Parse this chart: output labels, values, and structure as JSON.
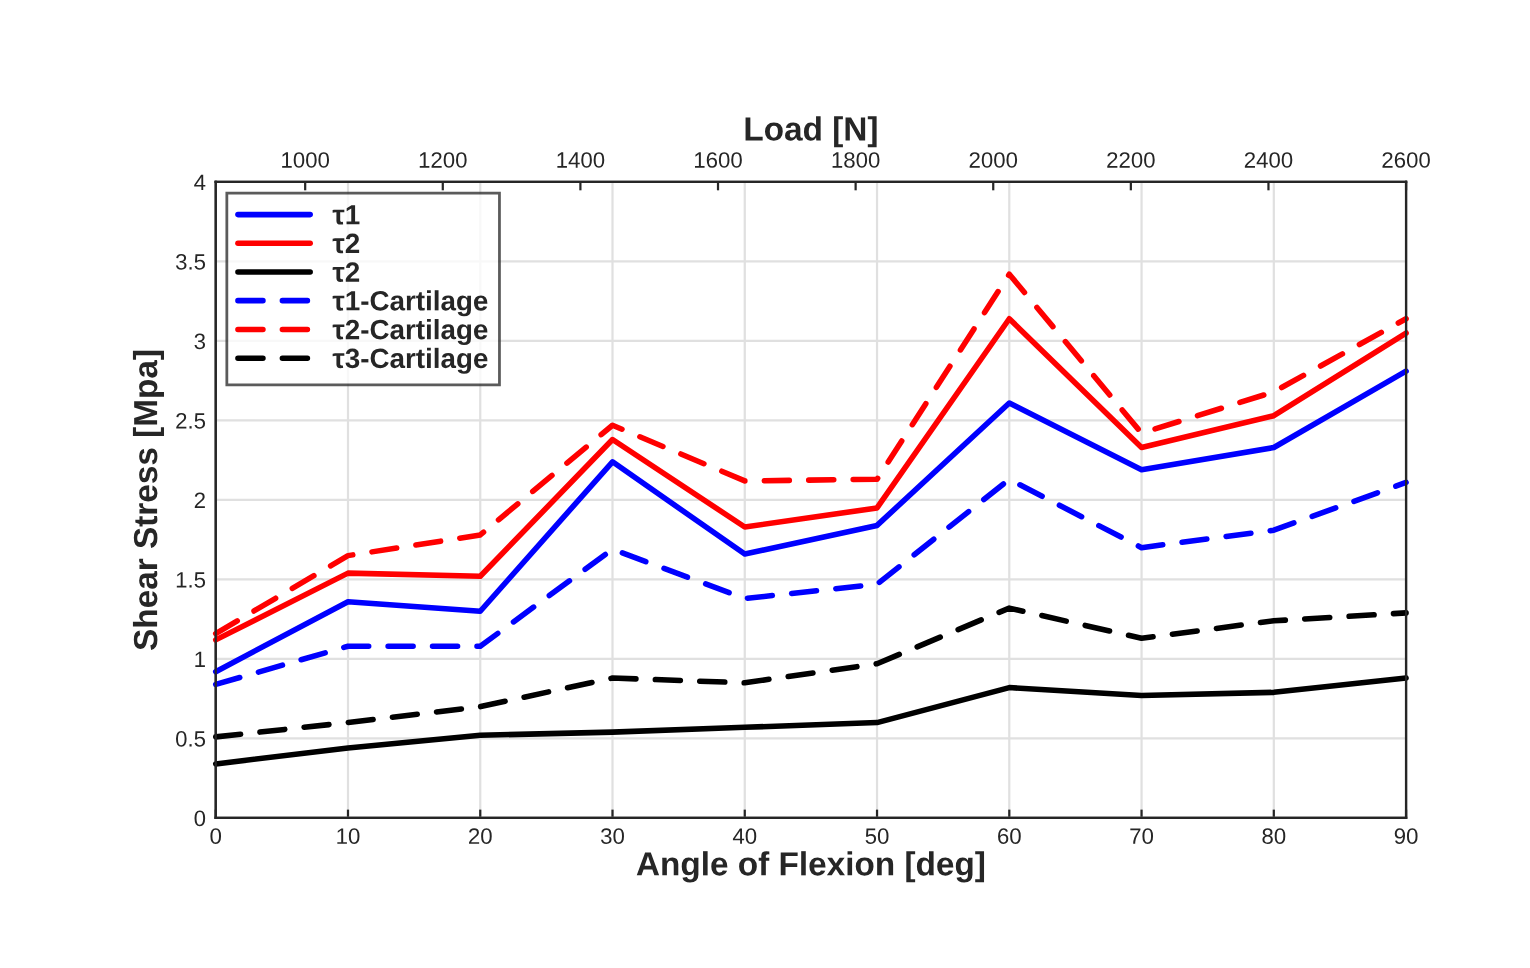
{
  "chart_data": {
    "type": "line",
    "xlabel": "Angle of Flexion [deg]",
    "ylabel": "Shear Stress [Mpa]",
    "x2label": "Load [N]",
    "x": [
      0,
      10,
      20,
      30,
      40,
      50,
      60,
      70,
      80,
      90
    ],
    "xlim": [
      0,
      90
    ],
    "xticks": [
      0,
      10,
      20,
      30,
      40,
      50,
      60,
      70,
      80,
      90
    ],
    "x2lim": [
      870,
      2600
    ],
    "x2ticks": [
      1000,
      1200,
      1400,
      1600,
      1800,
      2000,
      2200,
      2400,
      2600
    ],
    "ylim": [
      0,
      4
    ],
    "yticks": [
      0,
      0.5,
      1,
      1.5,
      2,
      2.5,
      3,
      3.5,
      4
    ],
    "grid": true,
    "legend": "top left",
    "series": [
      {
        "name": "τ1",
        "color": "#0000ff",
        "line_style": "solid",
        "values": [
          0.92,
          1.36,
          1.3,
          2.24,
          1.66,
          1.84,
          2.61,
          2.19,
          2.33,
          2.81
        ]
      },
      {
        "name": "τ2",
        "color": "#ff0000",
        "line_style": "solid",
        "values": [
          1.12,
          1.54,
          1.52,
          2.38,
          1.83,
          1.95,
          3.14,
          2.33,
          2.53,
          3.05
        ]
      },
      {
        "name": "τ2",
        "color": "#000000",
        "line_style": "solid",
        "values": [
          0.34,
          0.44,
          0.52,
          0.54,
          0.57,
          0.6,
          0.82,
          0.77,
          0.79,
          0.88
        ]
      },
      {
        "name": "τ1-Cartilage",
        "color": "#0000ff",
        "line_style": "dashed",
        "values": [
          0.84,
          1.08,
          1.08,
          1.69,
          1.38,
          1.47,
          2.13,
          1.7,
          1.81,
          2.11
        ]
      },
      {
        "name": "τ2-Cartilage",
        "color": "#ff0000",
        "line_style": "dashed",
        "values": [
          1.16,
          1.65,
          1.78,
          2.47,
          2.12,
          2.13,
          3.42,
          2.42,
          2.68,
          3.14
        ]
      },
      {
        "name": "τ3-Cartilage",
        "color": "#000000",
        "line_style": "dashed",
        "values": [
          0.51,
          0.6,
          0.7,
          0.88,
          0.85,
          0.97,
          1.32,
          1.13,
          1.24,
          1.29
        ]
      }
    ]
  }
}
